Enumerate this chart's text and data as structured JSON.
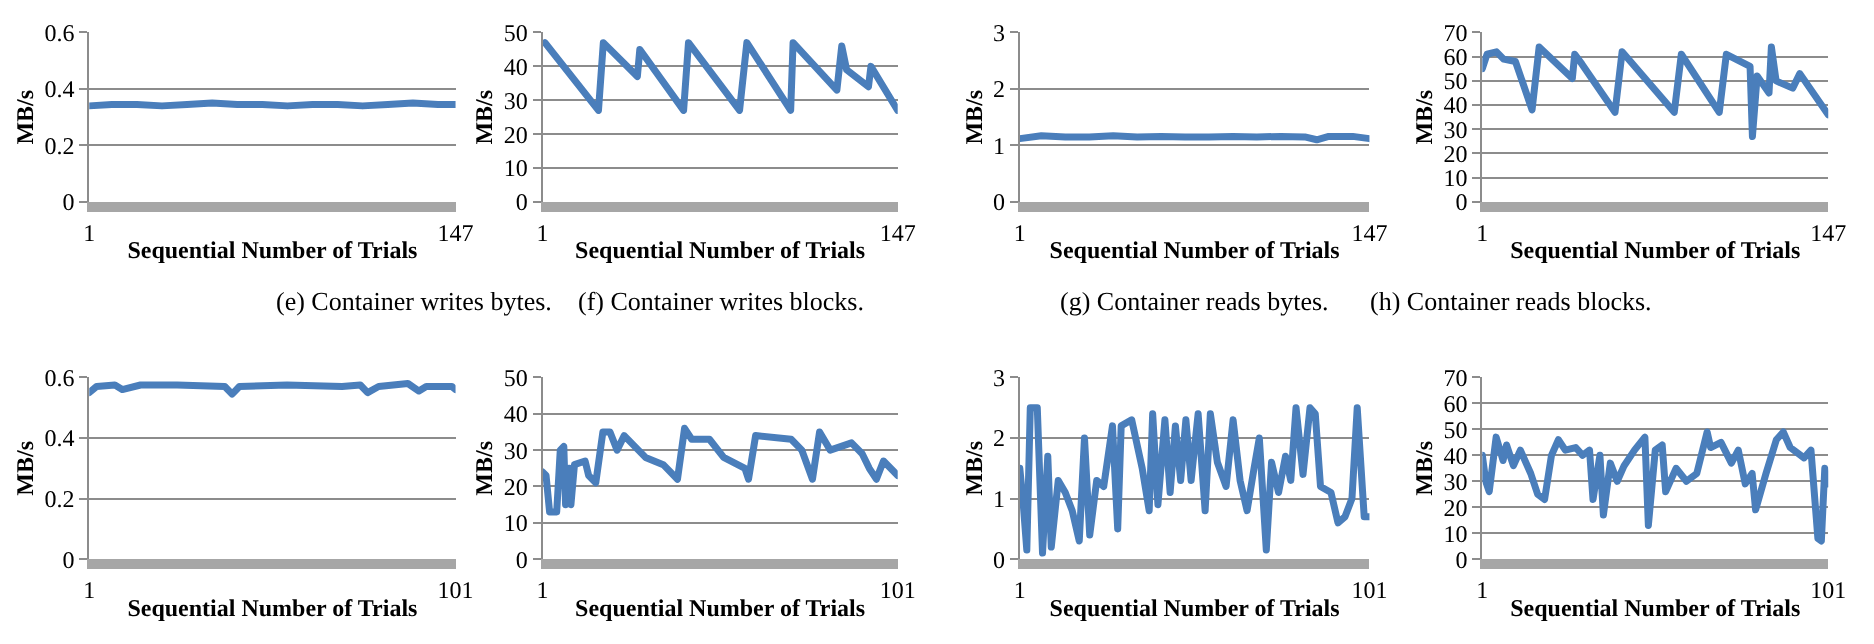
{
  "chart_data": [
    {
      "type": "line",
      "xlabel": "Sequential Number of Trials",
      "ylabel": "MB/s",
      "annotations": [
        "(e) Container writes bytes."
      ],
      "color": "#4a7ebb",
      "grid": "y",
      "xlim": [
        1,
        147
      ],
      "xticks": [
        1,
        147
      ],
      "ylim": [
        0,
        0.6
      ],
      "yticks": [
        0,
        0.2,
        0.4,
        0.6
      ],
      "x": [
        1,
        10,
        20,
        30,
        40,
        50,
        60,
        70,
        80,
        90,
        100,
        110,
        120,
        130,
        140,
        147
      ],
      "values": [
        0.34,
        0.345,
        0.345,
        0.34,
        0.345,
        0.35,
        0.345,
        0.345,
        0.34,
        0.345,
        0.345,
        0.34,
        0.345,
        0.35,
        0.345,
        0.345
      ]
    },
    {
      "type": "line",
      "xlabel": "Sequential Number of Trials",
      "ylabel": "MB/s",
      "annotations": [
        "(f) Container writes blocks."
      ],
      "color": "#4a7ebb",
      "grid": "y",
      "xlim": [
        1,
        147
      ],
      "xticks": [
        1,
        147
      ],
      "ylim": [
        0,
        50
      ],
      "yticks": [
        0,
        10,
        20,
        30,
        40,
        50
      ],
      "x": [
        2,
        24,
        26,
        40,
        41,
        59,
        61,
        82,
        85,
        103,
        104,
        122,
        124,
        126,
        135,
        136,
        147
      ],
      "values": [
        47,
        27,
        47,
        37,
        45,
        27,
        47,
        27,
        47,
        27,
        47,
        33,
        46,
        39,
        34,
        40,
        27
      ]
    },
    {
      "type": "line",
      "xlabel": "Sequential Number of Trials",
      "ylabel": "MB/s",
      "annotations": [
        "(g) Container reads bytes."
      ],
      "color": "#4a7ebb",
      "grid": "y",
      "xlim": [
        1,
        147
      ],
      "xticks": [
        1,
        147
      ],
      "ylim": [
        0,
        3
      ],
      "yticks": [
        0,
        1,
        2,
        3
      ],
      "x": [
        1,
        10,
        20,
        30,
        40,
        50,
        60,
        70,
        80,
        90,
        100,
        110,
        120,
        125,
        130,
        140,
        147
      ],
      "values": [
        1.12,
        1.17,
        1.15,
        1.15,
        1.17,
        1.15,
        1.16,
        1.15,
        1.15,
        1.16,
        1.15,
        1.16,
        1.15,
        1.1,
        1.16,
        1.16,
        1.12
      ]
    },
    {
      "type": "line",
      "xlabel": "Sequential Number of Trials",
      "ylabel": "MB/s",
      "annotations": [
        "(h) Container reads blocks."
      ],
      "color": "#4a7ebb",
      "grid": "y",
      "xlim": [
        1,
        147
      ],
      "xticks": [
        1,
        147
      ],
      "ylim": [
        0,
        70
      ],
      "yticks": [
        0,
        10,
        20,
        30,
        40,
        50,
        60,
        70
      ],
      "x": [
        1,
        3,
        7,
        10,
        15,
        22,
        25,
        39,
        40,
        43,
        57,
        60,
        82,
        85,
        101,
        104,
        114,
        115,
        117,
        122,
        123,
        125,
        132,
        135,
        147
      ],
      "values": [
        55,
        61,
        62,
        59,
        58,
        38,
        64,
        51,
        61,
        57,
        37,
        62,
        37,
        61,
        37,
        61,
        56,
        27,
        52,
        45,
        64,
        50,
        47,
        53,
        36
      ]
    },
    {
      "type": "line",
      "xlabel": "Sequential Number of Trials",
      "ylabel": "MB/s",
      "color": "#4a7ebb",
      "grid": "y",
      "xlim": [
        1,
        101
      ],
      "xticks": [
        1,
        101
      ],
      "ylim": [
        0,
        0.6
      ],
      "yticks": [
        0,
        0.2,
        0.4,
        0.6
      ],
      "x": [
        1,
        3,
        8,
        10,
        15,
        25,
        38,
        40,
        42,
        55,
        70,
        75,
        77,
        80,
        88,
        91,
        93,
        100,
        101
      ],
      "values": [
        0.55,
        0.57,
        0.575,
        0.56,
        0.575,
        0.575,
        0.57,
        0.545,
        0.57,
        0.575,
        0.57,
        0.575,
        0.55,
        0.57,
        0.58,
        0.555,
        0.57,
        0.57,
        0.56
      ]
    },
    {
      "type": "line",
      "xlabel": "Sequential Number of Trials",
      "ylabel": "MB/s",
      "color": "#4a7ebb",
      "grid": "y",
      "xlim": [
        1,
        101
      ],
      "xticks": [
        1,
        101
      ],
      "ylim": [
        0,
        50
      ],
      "yticks": [
        0,
        10,
        20,
        30,
        40,
        50
      ],
      "x": [
        1,
        2,
        3,
        5,
        6,
        7,
        7.5,
        8.5,
        9,
        10,
        13,
        14,
        16,
        18,
        20,
        22,
        24,
        28,
        30,
        35,
        39,
        41,
        43,
        48,
        52,
        58,
        59,
        61,
        71,
        74,
        77,
        79,
        82,
        88,
        91,
        93,
        95,
        97,
        101
      ],
      "values": [
        24,
        23,
        13,
        13,
        30,
        31,
        15,
        25,
        15,
        26,
        27,
        23,
        21,
        35,
        35,
        30,
        34,
        30,
        28,
        26,
        22,
        36,
        33,
        33,
        28,
        25,
        22,
        34,
        33,
        30,
        22,
        35,
        30,
        32,
        29,
        25,
        22,
        27,
        23
      ]
    },
    {
      "type": "line",
      "xlabel": "Sequential Number of Trials",
      "ylabel": "MB/s",
      "color": "#4a7ebb",
      "grid": "y",
      "xlim": [
        1,
        101
      ],
      "xticks": [
        1,
        101
      ],
      "ylim": [
        0,
        3
      ],
      "yticks": [
        0,
        1,
        2,
        3
      ],
      "x": [
        1,
        2,
        3,
        4,
        6,
        7.5,
        9,
        10,
        12,
        14,
        16,
        18,
        19.5,
        21,
        23,
        25,
        27.5,
        29,
        30,
        33,
        36,
        38,
        39,
        40.5,
        42.5,
        44,
        45.5,
        47,
        48.5,
        50,
        52,
        54,
        55.5,
        57.5,
        60,
        62,
        64,
        66,
        68,
        69.5,
        71.5,
        73,
        75,
        77,
        78.5,
        80,
        82,
        84,
        85.5,
        87,
        90,
        92,
        94,
        96,
        97.5,
        99.5,
        101
      ],
      "values": [
        1.5,
        0.9,
        0.15,
        2.5,
        2.5,
        0.1,
        1.7,
        0.2,
        1.3,
        1.1,
        0.8,
        0.3,
        2.0,
        0.4,
        1.3,
        1.2,
        2.2,
        0.5,
        2.2,
        2.3,
        1.5,
        0.8,
        2.4,
        0.9,
        2.3,
        1.1,
        2.2,
        1.3,
        2.3,
        1.3,
        2.4,
        0.8,
        2.4,
        1.6,
        1.2,
        2.3,
        1.3,
        0.8,
        1.5,
        2.0,
        0.15,
        1.6,
        1.1,
        1.7,
        1.3,
        2.5,
        1.4,
        2.5,
        2.4,
        1.2,
        1.1,
        0.6,
        0.7,
        1.0,
        2.5,
        0.7,
        0.7
      ]
    },
    {
      "type": "line",
      "xlabel": "Sequential Number of Trials",
      "ylabel": "MB/s",
      "color": "#4a7ebb",
      "grid": "y",
      "xlim": [
        1,
        101
      ],
      "xticks": [
        1,
        101
      ],
      "ylim": [
        0,
        70
      ],
      "yticks": [
        0,
        10,
        20,
        30,
        40,
        50,
        60,
        70
      ],
      "x": [
        1,
        2,
        3,
        5,
        7,
        8,
        10,
        12,
        15,
        17,
        19,
        21,
        23,
        25,
        28,
        30,
        32,
        33,
        35,
        36,
        38,
        40,
        42,
        45,
        48,
        49,
        51,
        53,
        54,
        57,
        60,
        63,
        66,
        67,
        70,
        73,
        75,
        77,
        79,
        80,
        83,
        86,
        88,
        90,
        94,
        96,
        98,
        99,
        100,
        101
      ],
      "values": [
        40,
        30,
        26,
        47,
        38,
        44,
        36,
        42,
        33,
        25,
        23,
        40,
        46,
        42,
        43,
        40,
        42,
        23,
        40,
        17,
        37,
        30,
        36,
        42,
        47,
        13,
        42,
        44,
        26,
        35,
        30,
        33,
        49,
        43,
        45,
        37,
        42,
        29,
        33,
        19,
        33,
        46,
        49,
        43,
        39,
        42,
        8,
        7,
        35,
        29
      ]
    }
  ]
}
